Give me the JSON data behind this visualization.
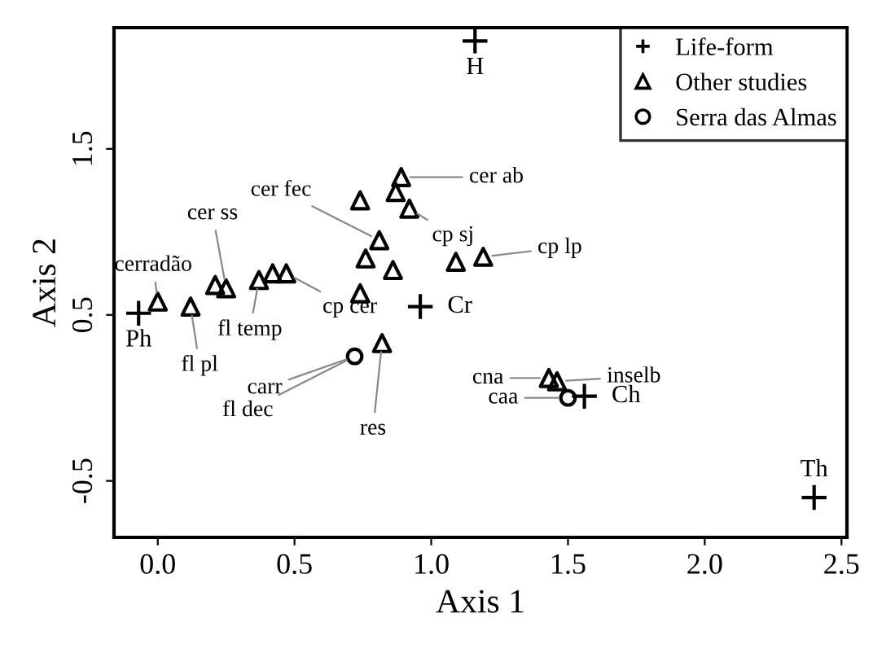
{
  "chart_data": {
    "type": "scatter",
    "xlabel": "Axis 1",
    "ylabel": "Axis 2",
    "xlim": [
      -0.16,
      2.52
    ],
    "ylim": [
      -0.84,
      2.23
    ],
    "xticks": [
      {
        "value": 0,
        "label": "0.0"
      },
      0.5,
      {
        "value": 1,
        "label": "1.0"
      },
      1.5,
      {
        "value": 2,
        "label": "2.0"
      },
      2.5
    ],
    "yticks": [
      -0.5,
      0.5,
      1.5
    ],
    "grid": false,
    "legend": "top right",
    "series": [
      {
        "name": "Life-form",
        "color": "#000000",
        "marker": "cross",
        "x": [
          1.16,
          -0.07,
          0.96,
          1.56,
          2.4
        ],
        "values": [
          2.15,
          0.51,
          0.55,
          0.01,
          -0.6
        ],
        "value_labels": [
          "H",
          "Ph",
          "Cr",
          "Ch",
          "Th"
        ]
      },
      {
        "name": "Other studies",
        "color": "#000000",
        "marker": "triangle",
        "x": [
          0.0,
          0.12,
          0.21,
          0.25,
          0.37,
          0.42,
          0.47,
          0.74,
          0.82,
          0.74,
          0.81,
          0.76,
          0.86,
          0.89,
          0.87,
          0.92,
          1.09,
          1.19,
          1.43,
          1.46
        ],
        "values": [
          0.58,
          0.55,
          0.68,
          0.66,
          0.71,
          0.75,
          0.75,
          0.63,
          0.33,
          1.19,
          0.95,
          0.84,
          0.77,
          1.33,
          1.24,
          1.14,
          0.82,
          0.85,
          0.12,
          0.1
        ]
      },
      {
        "name": "Serra das Almas",
        "color": "#000000",
        "marker": "circle",
        "x": [
          0.72,
          1.5
        ],
        "values": [
          0.25,
          0.0
        ]
      }
    ],
    "annotations": [
      {
        "text": "cerradão",
        "x": 0.0,
        "y": 0.58
      },
      {
        "text": "cer ss",
        "x": 0.25,
        "y": 0.66
      },
      {
        "text": "fl pl",
        "x": 0.12,
        "y": 0.55
      },
      {
        "text": "fl temp",
        "x": 0.37,
        "y": 0.71
      },
      {
        "text": "cp cer",
        "x": 0.47,
        "y": 0.75
      },
      {
        "text": "carr",
        "x": 0.72,
        "y": 0.25
      },
      {
        "text": "fl dec",
        "x": 0.72,
        "y": 0.25
      },
      {
        "text": "res",
        "x": 0.82,
        "y": 0.33
      },
      {
        "text": "cer fec",
        "x": 0.81,
        "y": 0.95
      },
      {
        "text": "cer ab",
        "x": 0.89,
        "y": 1.33
      },
      {
        "text": "cp sj",
        "x": 0.92,
        "y": 1.14
      },
      {
        "text": "cp lp",
        "x": 1.19,
        "y": 0.85
      },
      {
        "text": "cna",
        "x": 1.43,
        "y": 0.12
      },
      {
        "text": "inselb",
        "x": 1.46,
        "y": 0.1
      },
      {
        "text": "caa",
        "x": 1.5,
        "y": 0.0
      }
    ]
  }
}
